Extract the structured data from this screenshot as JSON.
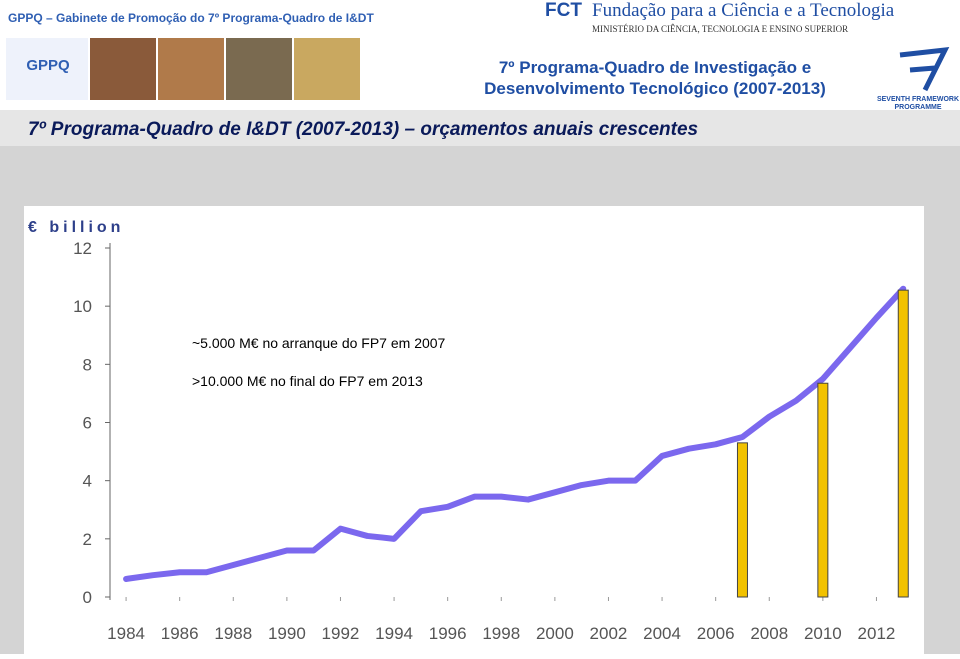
{
  "header": {
    "gppq": "GPPQ – Gabinete de Promoção do 7º Programa-Quadro de I&DT",
    "fct": "FCT",
    "fct_name": "Fundação para a Ciência e a Tecnologia",
    "ministry": "MINISTÉRIO DA CIÊNCIA, TECNOLOGIA E ENSINO SUPERIOR",
    "logo": "GPPQ",
    "program_line1": "7º Programa-Quadro de Investigação e",
    "program_line2": "Desenvolvimento Tecnológico (2007-2013)",
    "fp7_line1": "SEVENTH FRAMEWORK",
    "fp7_line2": "PROGRAMME",
    "slide_title": "7º Programa-Quadro de I&DT (2007-2013) – orçamentos anuais crescentes"
  },
  "chart_data": {
    "type": "line",
    "y_label": "€ billion",
    "annotations": [
      "~5.000 M€  no arranque  do FP7 em 2007",
      ">10.000 M€ no final do FP7 em 2013"
    ],
    "xlim": [
      1983.4,
      2013.55
    ],
    "xticks": [
      1984,
      1986,
      1988,
      1990,
      1992,
      1994,
      1996,
      1998,
      2000,
      2002,
      2004,
      2006,
      2008,
      2010,
      2012
    ],
    "ylim": [
      0,
      12
    ],
    "yticks": [
      0,
      2,
      4,
      6,
      8,
      10,
      12
    ],
    "series": [
      {
        "type": "line",
        "color": "#7b68ee",
        "x": [
          1984,
          1985,
          1986,
          1987,
          1988,
          1989,
          1990,
          1991,
          1992,
          1993,
          1994,
          1995,
          1996,
          1997,
          1998,
          1999,
          2000,
          2001,
          2002,
          2003,
          2004,
          2005,
          2006,
          2007,
          2008,
          2009,
          2010,
          2011,
          2012,
          2013
        ],
        "values": [
          0.62,
          0.75,
          0.85,
          0.85,
          1.1,
          1.35,
          1.6,
          1.6,
          2.35,
          2.1,
          2.0,
          2.95,
          3.1,
          3.45,
          3.45,
          3.35,
          3.6,
          3.85,
          4.0,
          4.0,
          4.85,
          5.1,
          5.25,
          5.5,
          6.2,
          6.75,
          7.5,
          8.55,
          9.6,
          10.6
        ]
      },
      {
        "type": "bar",
        "color": "#f2c200",
        "x": [
          2007,
          2010,
          2013
        ],
        "values": [
          5.3,
          7.35,
          10.55
        ]
      }
    ]
  }
}
